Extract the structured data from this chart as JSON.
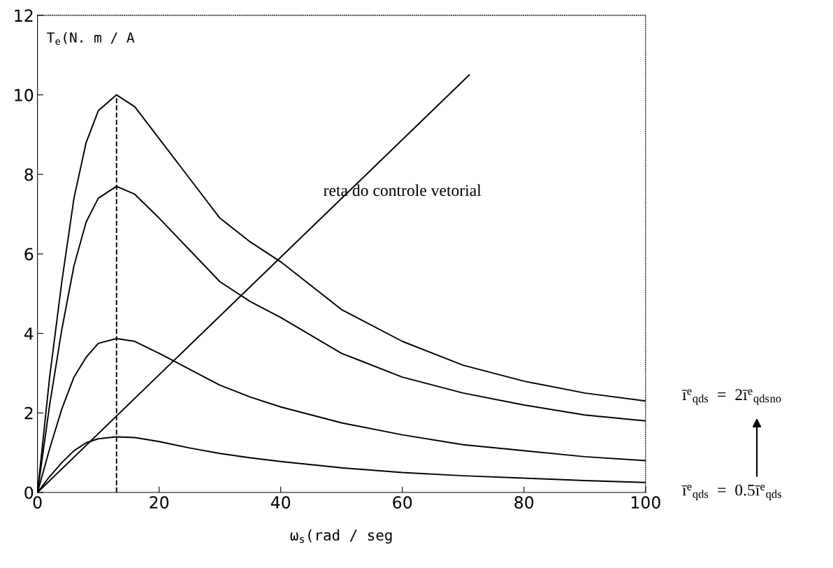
{
  "chart_data": {
    "type": "line",
    "xlabel": "ω$_{s}$(rad / seg",
    "ylabel": "T$_{e}$(N. m / A",
    "xlim": [
      0,
      100
    ],
    "ylim": [
      0,
      12
    ],
    "xticks": [
      0,
      20,
      40,
      60,
      80,
      100
    ],
    "yticks": [
      0,
      2,
      4,
      6,
      8,
      10,
      12
    ],
    "grid": false,
    "legend": false,
    "marker": "none",
    "line_style": "solid",
    "x": [
      0,
      2,
      4,
      6,
      8,
      10,
      13,
      16,
      20,
      25,
      30,
      35,
      40,
      50,
      60,
      70,
      80,
      90,
      100
    ],
    "series": [
      {
        "color": "#000000",
        "values": [
          0,
          2.9,
          5.3,
          7.4,
          8.8,
          9.6,
          10,
          9.7,
          8.9,
          7.9,
          6.9,
          6.3,
          5.8,
          4.6,
          3.8,
          3.2,
          2.8,
          2.5,
          2.3
        ]
      },
      {
        "color": "#000000",
        "values": [
          0,
          2.2,
          4.1,
          5.7,
          6.8,
          7.4,
          7.7,
          7.5,
          6.9,
          6.1,
          5.3,
          4.8,
          4.4,
          3.5,
          2.9,
          2.5,
          2.2,
          1.95,
          1.8
        ]
      },
      {
        "color": "#000000",
        "values": [
          0,
          1.1,
          2.1,
          2.9,
          3.4,
          3.75,
          3.87,
          3.8,
          3.5,
          3.1,
          2.7,
          2.4,
          2.15,
          1.75,
          1.45,
          1.2,
          1.05,
          0.9,
          0.8
        ]
      },
      {
        "color": "#000000",
        "values": [
          0,
          0.4,
          0.75,
          1.05,
          1.25,
          1.35,
          1.4,
          1.38,
          1.28,
          1.12,
          0.98,
          0.87,
          0.78,
          0.62,
          0.5,
          0.42,
          0.36,
          0.3,
          0.25
        ]
      },
      {
        "color": "#000000",
        "x": [
          0,
          71
        ],
        "values": [
          0,
          10.5
        ]
      },
      {
        "color": "#000000",
        "x": [
          13,
          13
        ],
        "values": [
          0,
          10
        ],
        "line_style": "dashed"
      }
    ],
    "annotations": [
      "reta do controle vetorial",
      "ī$^{e}$$_{qds}$  =  2ī$^{e}$$_{qds}$$_{no}$",
      "ī$^{e}$$_{qds}$  =  0.5ī$^{e}$$_{qds}$"
    ]
  }
}
